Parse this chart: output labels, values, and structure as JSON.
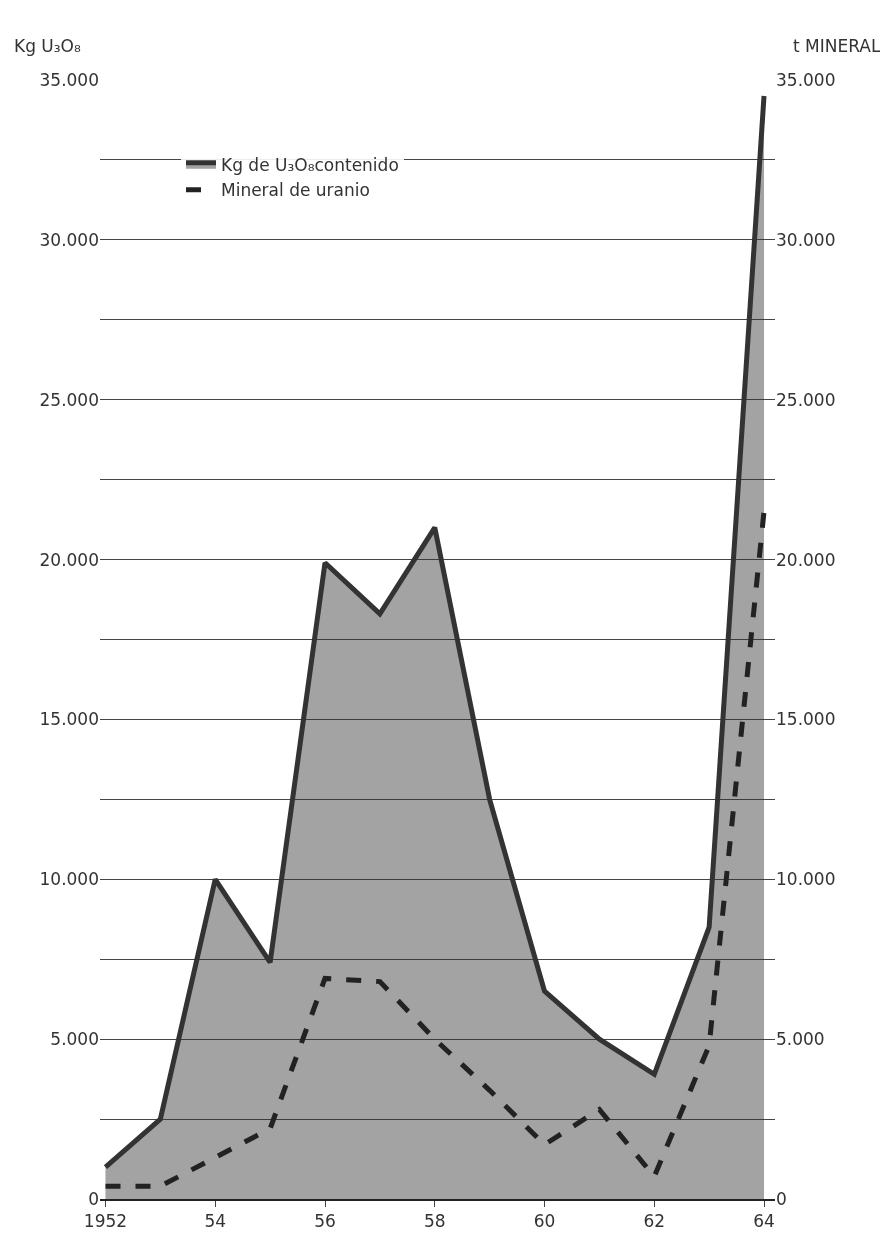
{
  "chart_data": {
    "type": "area",
    "ylabel": "Kg U₃O₈",
    "y2label": "t MINERAL",
    "x": [
      1952,
      1953,
      1954,
      1955,
      1956,
      1957,
      1958,
      1959,
      1960,
      1961,
      1962,
      1963,
      1964
    ],
    "series": [
      {
        "name": "Kg de U₃O₈contenido",
        "color": "#333333",
        "values": [
          1000,
          2500,
          10000,
          7400,
          19900,
          18300,
          21000,
          12500,
          6500,
          5000,
          3900,
          8500,
          34500
        ]
      },
      {
        "name": "Mineral de uranio",
        "type": "line",
        "axis": "y2",
        "line_style": "dashed",
        "color": "#222222",
        "values": [
          400,
          400,
          1300,
          2200,
          6900,
          6800,
          5000,
          3400,
          1700,
          2800,
          700,
          4800,
          21500
        ]
      }
    ],
    "xlim": [
      1951.9,
      1964.2
    ],
    "xticks": [
      1952,
      {
        "value": 1954,
        "label": "54"
      },
      {
        "value": 1956,
        "label": "56"
      },
      {
        "value": 1958,
        "label": "58"
      },
      {
        "value": 1960,
        "label": "60"
      },
      {
        "value": 1962,
        "label": "62"
      },
      {
        "value": 1964,
        "label": "64"
      }
    ],
    "ylim": [
      0,
      35000
    ],
    "yticks": [
      0,
      {
        "value": 2500,
        "label": null
      },
      {
        "value": 5000,
        "label": "5.000"
      },
      {
        "value": 7500,
        "label": null
      },
      {
        "value": 10000,
        "label": "10.000"
      },
      {
        "value": 12500,
        "label": null
      },
      {
        "value": 15000,
        "label": "15.000"
      },
      {
        "value": 17500,
        "label": null
      },
      {
        "value": 20000,
        "label": "20.000"
      },
      {
        "value": 22500,
        "label": null
      },
      {
        "value": 25000,
        "label": "25.000"
      },
      {
        "value": 27500,
        "label": null
      },
      {
        "value": 30000,
        "label": "30.000"
      },
      {
        "value": 32500,
        "label": null
      },
      {
        "value": 35000,
        "label": "35.000"
      }
    ],
    "y2lim": [
      0,
      35000
    ],
    "y2ticks": [
      0,
      {
        "value": 5000,
        "label": "5.000"
      },
      {
        "value": 10000,
        "label": "10.000"
      },
      {
        "value": 15000,
        "label": "15.000"
      },
      {
        "value": 20000,
        "label": "20.000"
      },
      {
        "value": 25000,
        "label": "25.000"
      },
      {
        "value": 30000,
        "label": "30.000"
      },
      {
        "value": 35000,
        "label": "35.000"
      }
    ],
    "grid": "y",
    "legend": "top left"
  }
}
